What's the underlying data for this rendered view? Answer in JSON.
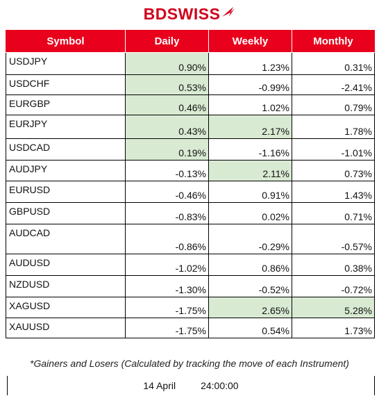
{
  "brand": {
    "name": "BDSWISS",
    "color": "#d0021b"
  },
  "table": {
    "header_color": "#e8001c",
    "positive_highlight": "#d9ead3",
    "columns": [
      "Symbol",
      "Daily",
      "Weekly",
      "Monthly"
    ],
    "rows": [
      {
        "symbol": "USDJPY",
        "daily": "0.90%",
        "weekly": "1.23%",
        "monthly": "0.31%"
      },
      {
        "symbol": "USDCHF",
        "daily": "0.53%",
        "weekly": "-0.99%",
        "monthly": "-2.41%"
      },
      {
        "symbol": "EURGBP",
        "daily": "0.46%",
        "weekly": "1.02%",
        "monthly": "0.79%"
      },
      {
        "symbol": "EURJPY",
        "daily": "0.43%",
        "weekly": "2.17%",
        "monthly": "1.78%"
      },
      {
        "symbol": "USDCAD",
        "daily": "0.19%",
        "weekly": "-1.16%",
        "monthly": "-1.01%"
      },
      {
        "symbol": "AUDJPY",
        "daily": "-0.13%",
        "weekly": "2.11%",
        "monthly": "0.73%"
      },
      {
        "symbol": "EURUSD",
        "daily": "-0.46%",
        "weekly": "0.91%",
        "monthly": "1.43%"
      },
      {
        "symbol": "GBPUSD",
        "daily": "-0.83%",
        "weekly": "0.02%",
        "monthly": "0.71%"
      },
      {
        "symbol": "AUDCAD",
        "daily": "-0.86%",
        "weekly": "-0.29%",
        "monthly": "-0.57%"
      },
      {
        "symbol": "AUDUSD",
        "daily": "-1.02%",
        "weekly": "0.86%",
        "monthly": "0.38%"
      },
      {
        "symbol": "NZDUSD",
        "daily": "-1.30%",
        "weekly": "-0.52%",
        "monthly": "-0.72%"
      },
      {
        "symbol": "XAGUSD",
        "daily": "-1.75%",
        "weekly": "2.65%",
        "monthly": "5.28%"
      },
      {
        "symbol": "XAUUSD",
        "daily": "-1.75%",
        "weekly": "0.54%",
        "monthly": "1.73%"
      }
    ]
  },
  "note": "*Gainers and Losers (Calculated by tracking the move of each Instrument)",
  "footer": {
    "date": "14 April",
    "time": "24:00:00"
  }
}
